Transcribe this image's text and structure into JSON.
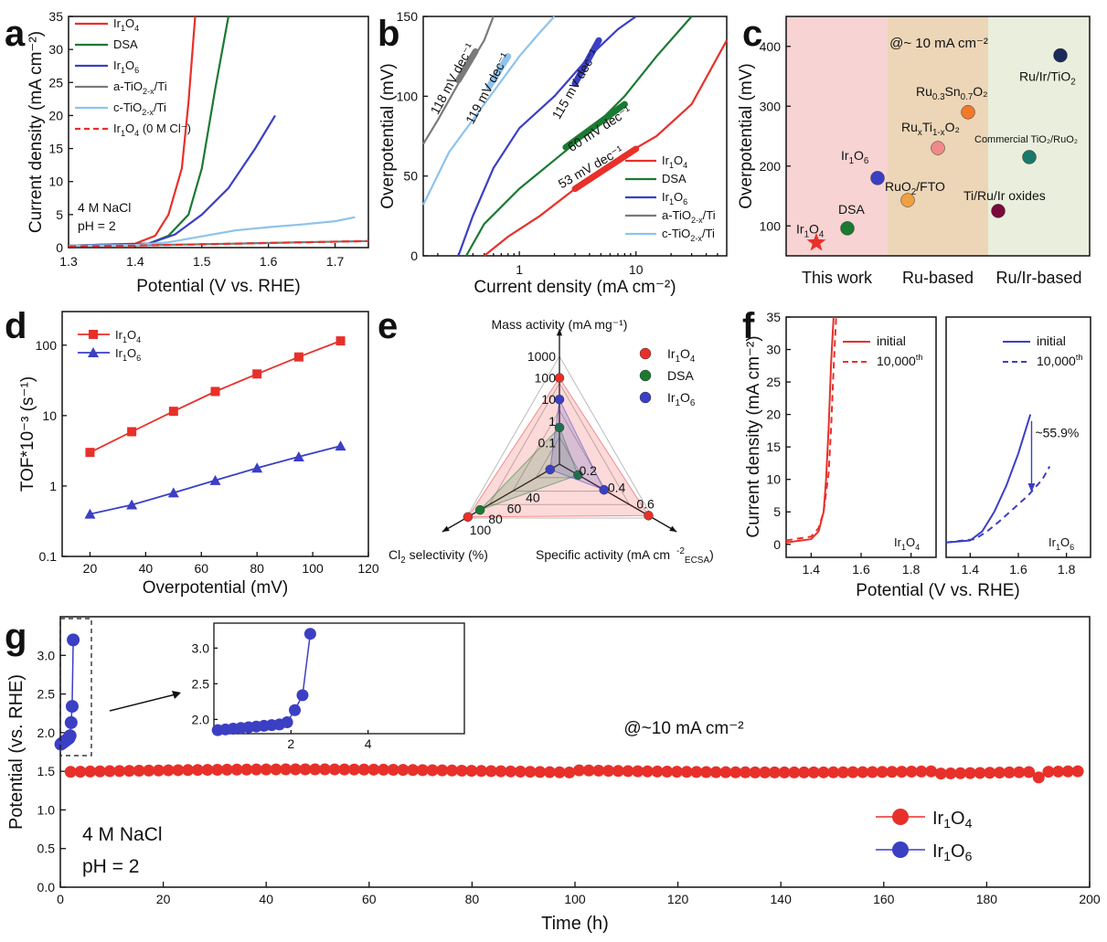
{
  "panel_labels": [
    "a",
    "b",
    "c",
    "d",
    "e",
    "f",
    "g"
  ],
  "colors": {
    "ir1o4": "#e8302a",
    "dsa": "#1a7a32",
    "ir1o6": "#3b3fc4",
    "atio": "#7a7a7a",
    "ctio": "#8ec3ec"
  },
  "chart_data": [
    {
      "panel": "a",
      "type": "line",
      "xlabel": "Potential (V vs. RHE)",
      "ylabel": "Current density (mA cm⁻²)",
      "xlim": [
        1.3,
        1.75
      ],
      "ylim": [
        0,
        35
      ],
      "xticks": [
        "1.3",
        "1.4",
        "1.5",
        "1.6",
        "1.7"
      ],
      "yticks": [
        "0",
        "5",
        "10",
        "15",
        "20",
        "25",
        "30",
        "35"
      ],
      "annotations": [
        "4 M NaCl",
        "pH = 2"
      ],
      "series": [
        {
          "name": "Ir1O4",
          "color": "#e8302a",
          "x": [
            1.3,
            1.4,
            1.43,
            1.45,
            1.47,
            1.48,
            1.49
          ],
          "y": [
            0.3,
            0.6,
            1.8,
            5,
            12,
            22,
            35
          ]
        },
        {
          "name": "DSA",
          "color": "#1a7a32",
          "x": [
            1.3,
            1.42,
            1.45,
            1.48,
            1.5,
            1.52,
            1.54
          ],
          "y": [
            0.3,
            0.6,
            1.8,
            5,
            12,
            24,
            35
          ]
        },
        {
          "name": "Ir1O6",
          "color": "#3b3fc4",
          "x": [
            1.3,
            1.42,
            1.46,
            1.5,
            1.54,
            1.58,
            1.61
          ],
          "y": [
            0.3,
            0.6,
            2,
            5,
            9,
            15,
            20
          ]
        },
        {
          "name": "a-TiO2-x/Ti",
          "color": "#7a7a7a",
          "x": [
            1.3,
            1.4,
            1.5,
            1.6,
            1.75
          ],
          "y": [
            0.3,
            0.35,
            0.5,
            0.7,
            1.0
          ]
        },
        {
          "name": "c-TiO2-x/Ti",
          "color": "#8ec3ec",
          "x": [
            1.3,
            1.4,
            1.45,
            1.5,
            1.55,
            1.6,
            1.65,
            1.7,
            1.73
          ],
          "y": [
            0.3,
            0.4,
            0.8,
            1.7,
            2.6,
            3.1,
            3.5,
            4.0,
            4.6
          ]
        },
        {
          "name": "Ir1O4 (0 M Cl-)",
          "color": "#e8302a",
          "dashed": true,
          "x": [
            1.3,
            1.4,
            1.5,
            1.6,
            1.75
          ],
          "y": [
            0.2,
            0.3,
            0.5,
            0.7,
            1.0
          ]
        }
      ],
      "legend": [
        {
          "base": "Ir",
          "sub1": "1",
          "mid": "O",
          "sub2": "4",
          "tail": ""
        },
        {
          "base": "DSA",
          "sub1": "",
          "mid": "",
          "sub2": "",
          "tail": ""
        },
        {
          "base": "Ir",
          "sub1": "1",
          "mid": "O",
          "sub2": "6",
          "tail": ""
        },
        {
          "base": "a-TiO",
          "sub1": "2-x",
          "mid": "/Ti",
          "sub2": "",
          "tail": ""
        },
        {
          "base": "c-TiO",
          "sub1": "2-x",
          "mid": "/Ti",
          "sub2": "",
          "tail": ""
        },
        {
          "base": "Ir",
          "sub1": "1",
          "mid": "O",
          "sub2": "4",
          "tail": " (0 M Cl⁻)"
        }
      ]
    },
    {
      "panel": "b",
      "type": "line",
      "xscale": "log",
      "xlabel": "Current density (mA cm⁻²)",
      "ylabel": "Overpotential (mV)",
      "xlim": [
        0.15,
        60
      ],
      "ylim": [
        0,
        150
      ],
      "xticks": [
        "1",
        "10"
      ],
      "yticks": [
        "0",
        "50",
        "100",
        "150"
      ],
      "series": [
        {
          "name": "Ir1O4",
          "color": "#e8302a",
          "x": [
            0.5,
            0.8,
            1.5,
            3,
            6,
            15,
            30,
            60
          ],
          "y": [
            0,
            12,
            25,
            42,
            58,
            75,
            95,
            135
          ]
        },
        {
          "name": "DSA",
          "color": "#1a7a32",
          "x": [
            0.35,
            0.5,
            1,
            2,
            4,
            8,
            15,
            30
          ],
          "y": [
            0,
            20,
            42,
            60,
            78,
            100,
            125,
            150
          ]
        },
        {
          "name": "Ir1O6",
          "color": "#3b3fc4",
          "x": [
            0.3,
            0.4,
            0.6,
            1,
            2,
            4,
            7,
            10
          ],
          "y": [
            0,
            25,
            55,
            80,
            100,
            125,
            142,
            150
          ]
        },
        {
          "name": "a-TiO2-x/Ti",
          "color": "#7a7a7a",
          "x": [
            0.15,
            0.2,
            0.3,
            0.5,
            0.6
          ],
          "y": [
            70,
            85,
            108,
            135,
            150
          ]
        },
        {
          "name": "c-TiO2-x/Ti",
          "color": "#8ec3ec",
          "x": [
            0.15,
            0.25,
            0.5,
            1,
            1.5,
            2
          ],
          "y": [
            32,
            65,
            95,
            125,
            140,
            150
          ]
        }
      ],
      "tafel_labels": [
        "118 mV dec⁻¹",
        "119 mV dec⁻¹",
        "115 mV dec⁻¹",
        "60 mV dec⁻¹",
        "53 mV dec⁻¹"
      ],
      "legend": [
        {
          "base": "Ir",
          "sub1": "1",
          "mid": "O",
          "sub2": "4",
          "tail": ""
        },
        {
          "base": "DSA",
          "sub1": "",
          "mid": "",
          "sub2": "",
          "tail": ""
        },
        {
          "base": "Ir",
          "sub1": "1",
          "mid": "O",
          "sub2": "6",
          "tail": ""
        },
        {
          "base": "a-TiO",
          "sub1": "2-x",
          "mid": "/Ti",
          "sub2": "",
          "tail": ""
        },
        {
          "base": "c-TiO",
          "sub1": "2-x",
          "mid": "/Ti",
          "sub2": "",
          "tail": ""
        }
      ]
    },
    {
      "panel": "c",
      "type": "scatter",
      "ylabel": "Overpotential (mV)",
      "ylim": [
        50,
        450
      ],
      "yticks": [
        "100",
        "200",
        "300",
        "400"
      ],
      "header_note": "@~ 10 mA cm⁻²",
      "groups": [
        "This work",
        "Ru-based",
        "Ru/Ir-based"
      ],
      "group_colors": [
        "#f7d3d3",
        "#ecd6b7",
        "#e9efdc"
      ],
      "group_text_colors": [
        "#e8302a",
        "#e6a020",
        "#2b8a8a"
      ],
      "points": [
        {
          "label": "Ir1O4",
          "group": 0,
          "y": 72,
          "color": "#e8302a",
          "marker": "star"
        },
        {
          "label": "DSA",
          "group": 0,
          "y": 96,
          "color": "#1a7a32"
        },
        {
          "label": "Ir1O6",
          "group": 0,
          "y": 180,
          "color": "#3b3fc4"
        },
        {
          "label": "RuO2/FTO",
          "group": 1,
          "y": 143,
          "color": "#f0a040"
        },
        {
          "label": "RuxTi1-xO2",
          "group": 1,
          "y": 230,
          "color": "#f08a8a"
        },
        {
          "label": "Ru0.3Sn0.7O2",
          "group": 1,
          "y": 290,
          "color": "#f07a2a"
        },
        {
          "label": "Commercial TiO2/RuO2",
          "group": 2,
          "y": 215,
          "color": "#1a7a6a"
        },
        {
          "label": "Ti/Ru/Ir oxides",
          "group": 2,
          "y": 125,
          "color": "#7a0a3a"
        },
        {
          "label": "Ru/Ir/TiO2",
          "group": 2,
          "y": 385,
          "color": "#1a2a5a"
        }
      ]
    },
    {
      "panel": "d",
      "type": "line",
      "yscale": "log",
      "xlabel": "Overpotential (mV)",
      "ylabel": "TOF*10⁻³ (s⁻¹)",
      "xlim": [
        10,
        120
      ],
      "ylim": [
        0.1,
        300
      ],
      "xticks": [
        "20",
        "40",
        "60",
        "80",
        "100",
        "120"
      ],
      "yticks": [
        "0.1",
        "1",
        "10",
        "100"
      ],
      "x": [
        20,
        35,
        50,
        65,
        80,
        95,
        110
      ],
      "series": [
        {
          "name": "Ir1O4",
          "color": "#e8302a",
          "marker": "square",
          "values": [
            3.0,
            5.9,
            11.5,
            22,
            39,
            68,
            115
          ]
        },
        {
          "name": "Ir1O6",
          "color": "#3b3fc4",
          "marker": "triangle",
          "values": [
            0.4,
            0.54,
            0.8,
            1.2,
            1.8,
            2.6,
            3.7
          ]
        }
      ]
    },
    {
      "panel": "e",
      "type": "radar",
      "axes": [
        "Mass activity (mA mg⁻¹)",
        "Specific activity (mA cm⁻²ECSA)",
        "Cl2 selectivity (%)"
      ],
      "mass_ticks": [
        "1000",
        "100",
        "10",
        "1",
        "0.1"
      ],
      "specific_ticks": [
        "0.2",
        "0.4",
        "0.6"
      ],
      "selectivity_ticks": [
        "40",
        "60",
        "80",
        "100"
      ],
      "series": [
        {
          "name": "Ir1O4",
          "color": "#e8302a",
          "mass": 100,
          "specific": 0.62,
          "selectivity": 98
        },
        {
          "name": "DSA",
          "color": "#1a7a32",
          "mass": 0.5,
          "specific": 0.13,
          "selectivity": 85
        },
        {
          "name": "Ir1O6",
          "color": "#3b3fc4",
          "mass": 10,
          "specific": 0.31,
          "selectivity": 10
        }
      ]
    },
    {
      "panel": "f",
      "type": "line",
      "xlabel": "Potential (V vs. RHE)",
      "ylabel": "Current density (mA cm⁻²)",
      "xlim": [
        1.3,
        1.9
      ],
      "ylim": [
        -2,
        35
      ],
      "xticks": [
        "1.4",
        "1.6",
        "1.8"
      ],
      "yticks": [
        "0",
        "5",
        "10",
        "15",
        "20",
        "25",
        "30",
        "35"
      ],
      "annotation": "~55.9%",
      "legend_labels": [
        "initial",
        "10,000th"
      ],
      "subplots": [
        {
          "sample": "Ir1O4",
          "series": [
            {
              "name": "initial",
              "color": "#e8302a",
              "x": [
                1.3,
                1.4,
                1.43,
                1.45,
                1.46,
                1.47,
                1.48,
                1.49
              ],
              "y": [
                0.3,
                0.8,
                2,
                5,
                10,
                18,
                28,
                35
              ]
            },
            {
              "name": "10,000th",
              "color": "#e8302a",
              "dashed": true,
              "x": [
                1.3,
                1.4,
                1.43,
                1.45,
                1.47,
                1.48,
                1.49,
                1.5
              ],
              "y": [
                0.6,
                1.2,
                2.5,
                5,
                11,
                18,
                27,
                35
              ]
            }
          ]
        },
        {
          "sample": "Ir1O6",
          "series": [
            {
              "name": "initial",
              "color": "#3b3fc4",
              "x": [
                1.3,
                1.4,
                1.45,
                1.5,
                1.55,
                1.6,
                1.65
              ],
              "y": [
                0.3,
                0.6,
                2,
                5,
                9,
                14,
                20
              ]
            },
            {
              "name": "10,000th",
              "color": "#3b3fc4",
              "dashed": true,
              "x": [
                1.3,
                1.42,
                1.47,
                1.52,
                1.58,
                1.64,
                1.7,
                1.73
              ],
              "y": [
                0.3,
                0.8,
                2,
                3.5,
                5.5,
                7.5,
                10,
                12
              ]
            }
          ]
        }
      ]
    },
    {
      "panel": "g",
      "type": "line",
      "xlabel": "Time (h)",
      "ylabel": "Potential (vs. RHE)",
      "xlim": [
        0,
        200
      ],
      "ylim": [
        0,
        3.5
      ],
      "xticks": [
        "0",
        "20",
        "40",
        "60",
        "80",
        "100",
        "120",
        "140",
        "160",
        "180",
        "200"
      ],
      "yticks": [
        "0.0",
        "0.5",
        "1.0",
        "1.5",
        "2.0",
        "2.5",
        "3.0"
      ],
      "note": "@~10 mA cm⁻²",
      "annotations": [
        "4 M NaCl",
        "pH = 2"
      ],
      "series": [
        {
          "name": "Ir1O4",
          "color": "#e8302a",
          "x_start": 2,
          "x_end": 199,
          "y_base": 1.49
        },
        {
          "name": "Ir1O6",
          "color": "#3b3fc4",
          "x": [
            0.1,
            0.3,
            0.5,
            0.7,
            0.9,
            1.1,
            1.3,
            1.5,
            1.7,
            1.9,
            2.1,
            2.3,
            2.5
          ],
          "y": [
            1.85,
            1.86,
            1.87,
            1.88,
            1.89,
            1.9,
            1.91,
            1.92,
            1.93,
            1.96,
            2.13,
            2.34,
            3.2
          ]
        }
      ],
      "inset": {
        "xlim": [
          0,
          6.5
        ],
        "ylim": [
          1.8,
          3.35
        ],
        "xticks": [
          "2",
          "4"
        ],
        "yticks": [
          "2.0",
          "2.5",
          "3.0"
        ]
      }
    }
  ]
}
